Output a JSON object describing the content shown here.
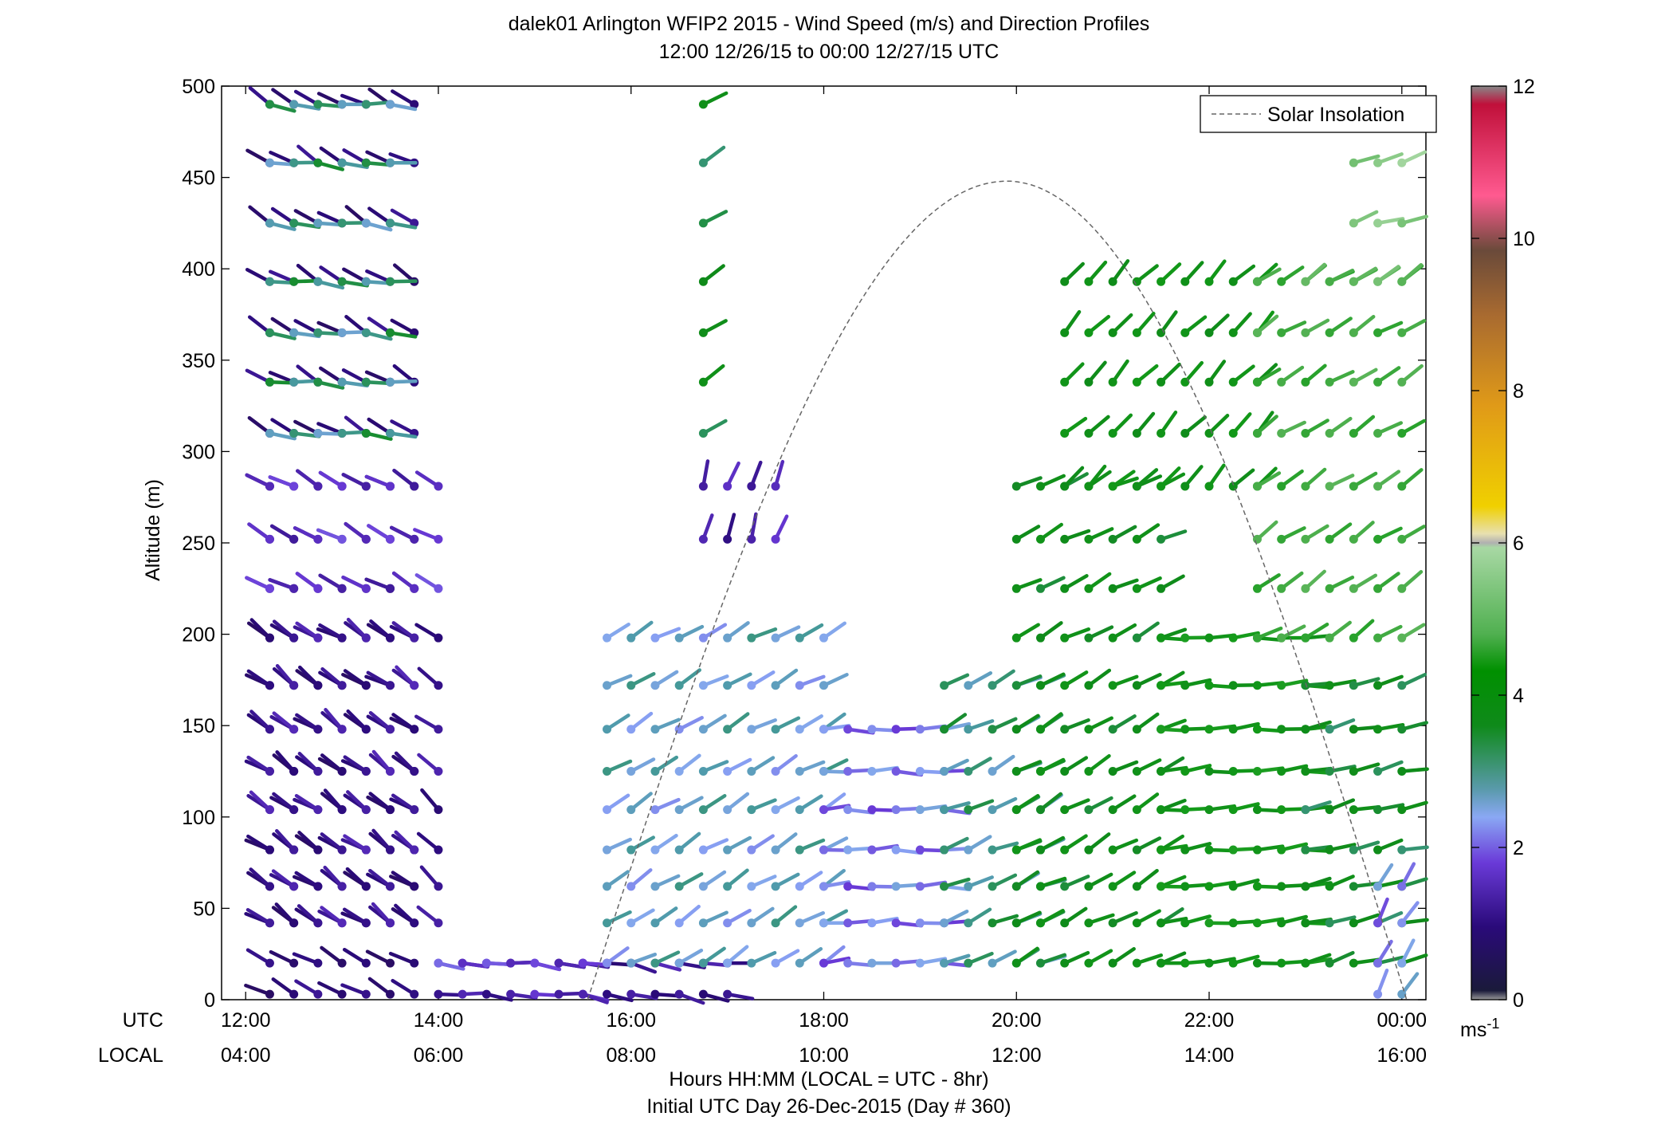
{
  "chart_data": {
    "type": "wind-barb-profile",
    "title": "dalek01 Arlington WFIP2 2015 - Wind Speed (m/s) and Direction Profiles",
    "subtitle": "12:00 12/26/15 to 00:00 12/27/15  UTC",
    "ylabel": "Altitude (m)",
    "xlabel": "Hours HH:MM  (LOCAL = UTC - 8hr)",
    "xlabel2": "Initial UTC Day 26-Dec-2015 (Day # 360)",
    "x_row_labels": [
      "UTC",
      "LOCAL"
    ],
    "ylim": [
      0,
      500
    ],
    "y_ticks": [
      "0",
      "50",
      "100",
      "150",
      "200",
      "250",
      "300",
      "350",
      "400",
      "450",
      "500"
    ],
    "xlim_hours": [
      11.75,
      24.25
    ],
    "x_ticks": [
      {
        "hour": 12,
        "utc": "12:00",
        "local": "04:00"
      },
      {
        "hour": 14,
        "utc": "14:00",
        "local": "06:00"
      },
      {
        "hour": 16,
        "utc": "16:00",
        "local": "08:00"
      },
      {
        "hour": 18,
        "utc": "18:00",
        "local": "10:00"
      },
      {
        "hour": 20,
        "utc": "20:00",
        "local": "12:00"
      },
      {
        "hour": 22,
        "utc": "22:00",
        "local": "14:00"
      },
      {
        "hour": 24,
        "utc": "00:00",
        "local": "16:00"
      }
    ],
    "legend": {
      "label": "Solar Insolation",
      "placement": "top-right",
      "style": "dashed",
      "color": "#666666"
    },
    "solar_curve": {
      "start_hour": 15.55,
      "end_hour": 24.05,
      "peak_hour": 19.9,
      "peak_altitude": 448
    },
    "colorbar": {
      "min": 0,
      "max": 12,
      "ticks": [
        "0",
        "2",
        "4",
        "6",
        "8",
        "10",
        "12"
      ],
      "unit": "ms",
      "unit_exp": "-1"
    },
    "barb_heights": [
      3,
      20,
      42,
      62,
      82,
      104,
      125,
      148,
      172,
      198,
      225,
      252,
      281,
      310,
      338,
      365,
      393,
      425,
      458,
      490
    ],
    "barb_times": [
      12.25,
      12.5,
      12.75,
      13.0,
      13.25,
      13.5,
      13.75,
      14.0,
      14.25,
      14.5,
      14.75,
      15.0,
      15.25,
      15.5,
      15.75,
      16.0,
      16.25,
      16.5,
      16.75,
      17.0,
      17.25,
      17.5,
      17.75,
      18.0,
      18.25,
      18.5,
      18.75,
      19.0,
      19.25,
      19.5,
      19.75,
      20.0,
      20.25,
      20.5,
      20.75,
      21.0,
      21.25,
      21.5,
      21.75,
      22.0,
      22.25,
      22.5,
      22.75,
      23.0,
      23.25,
      23.5,
      23.75,
      24.0
    ],
    "barb_segments": [
      {
        "t0": 12.25,
        "t1": 13.9,
        "h0": 0,
        "h1": 19,
        "speed": 0.7,
        "dir": 300
      },
      {
        "t0": 14.0,
        "t1": 15.5,
        "h0": 0,
        "h1": 1,
        "speed": 1.2,
        "dir": 95
      },
      {
        "t0": 15.5,
        "t1": 17.0,
        "h0": 0,
        "h1": 1,
        "speed": 1.0,
        "dir": 100
      },
      {
        "t0": 12.25,
        "t1": 14.0,
        "h0": 2,
        "h1": 9,
        "speed": 1.0,
        "dir": 310
      },
      {
        "t0": 12.25,
        "t1": 14.0,
        "h0": 10,
        "h1": 12,
        "speed": 1.4,
        "dir": 300
      },
      {
        "t0": 12.25,
        "t1": 13.5,
        "h0": 13,
        "h1": 19,
        "speed": 2.6,
        "dir": 95
      },
      {
        "t0": 14.0,
        "t1": 15.5,
        "h0": 1,
        "h1": 1,
        "speed": 1.5,
        "dir": 95
      },
      {
        "t0": 15.75,
        "t1": 18.0,
        "h0": 1,
        "h1": 9,
        "speed": 2.3,
        "dir": 60
      },
      {
        "t0": 16.75,
        "t1": 17.5,
        "h0": 11,
        "h1": 12,
        "speed": 1.2,
        "dir": 20
      },
      {
        "t0": 16.75,
        "t1": 16.75,
        "h0": 13,
        "h1": 19,
        "speed": 3.0,
        "dir": 60
      },
      {
        "t0": 18.0,
        "t1": 19.25,
        "h0": 1,
        "h1": 7,
        "speed": 1.9,
        "dir": 88
      },
      {
        "t0": 19.25,
        "t1": 20.25,
        "h0": 1,
        "h1": 8,
        "speed": 2.6,
        "dir": 65
      },
      {
        "t0": 20.0,
        "t1": 21.5,
        "h0": 1,
        "h1": 12,
        "speed": 3.2,
        "dir": 62
      },
      {
        "t0": 20.5,
        "t1": 22.5,
        "h0": 12,
        "h1": 16,
        "speed": 3.4,
        "dir": 45
      },
      {
        "t0": 21.5,
        "t1": 23.0,
        "h0": 1,
        "h1": 9,
        "speed": 3.6,
        "dir": 85
      },
      {
        "t0": 22.5,
        "t1": 24.0,
        "h0": 9,
        "h1": 16,
        "speed": 4.4,
        "dir": 58
      },
      {
        "t0": 23.0,
        "t1": 24.0,
        "h0": 1,
        "h1": 8,
        "speed": 3.0,
        "dir": 75
      },
      {
        "t0": 23.75,
        "t1": 24.0,
        "h0": 0,
        "h1": 3,
        "speed": 2.0,
        "dir": 30
      },
      {
        "t0": 23.0,
        "t1": 24.0,
        "h0": 16,
        "h1": 16,
        "speed": 4.8,
        "dir": 55
      },
      {
        "t0": 23.5,
        "t1": 24.0,
        "h0": 17,
        "h1": 18,
        "speed": 5.4,
        "dir": 70
      }
    ]
  }
}
